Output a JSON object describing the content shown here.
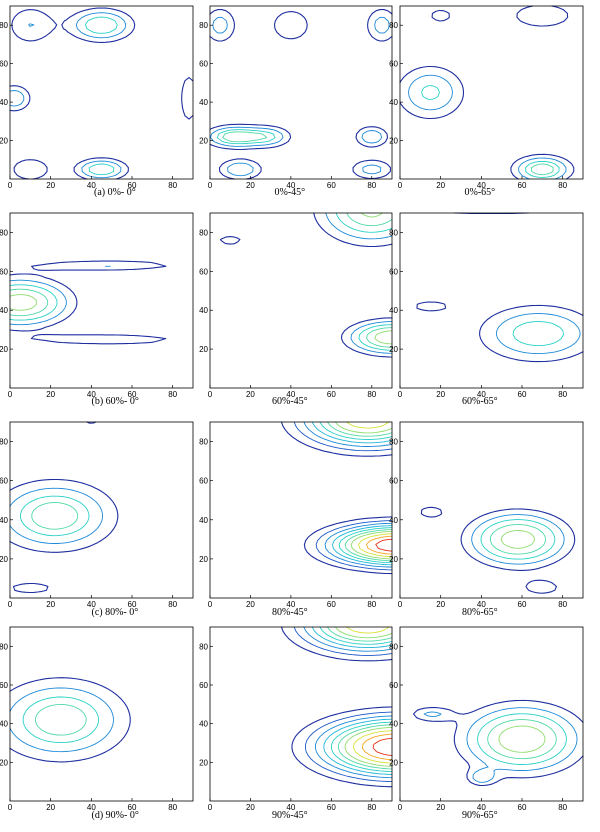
{
  "figure": {
    "panels": [
      {
        "caption": "(a) 0%- 0°"
      },
      {
        "caption": "0%-45°"
      },
      {
        "caption": "0%-65°"
      },
      {
        "caption": "(b) 60%- 0°"
      },
      {
        "caption": "60%-45°"
      },
      {
        "caption": "60%-65°"
      },
      {
        "caption": "(c) 80%- 0°"
      },
      {
        "caption": "80%-45°"
      },
      {
        "caption": "80%-65°"
      },
      {
        "caption": "(d) 90%- 0°"
      },
      {
        "caption": "90%-45°"
      },
      {
        "caption": "90%-65°"
      }
    ]
  },
  "colors": {
    "level_palette": [
      "#1f2fa0",
      "#1d58c8",
      "#1e8ad8",
      "#21b6d8",
      "#2ad1c8",
      "#52d9a6",
      "#8fdc6e",
      "#d6e23c",
      "#f5a623",
      "#e8321c"
    ]
  },
  "chart_data": [
    {
      "type": "contour",
      "caption": "(a) 0%- 0°",
      "xlim": [
        0,
        90
      ],
      "ylim": [
        90,
        0
      ],
      "xticks": [
        0,
        20,
        40,
        60,
        80
      ],
      "yticks": [
        20,
        40,
        60,
        80
      ],
      "show_yticks": true,
      "sources": [
        {
          "x": 45,
          "y": 5,
          "sx": 9,
          "sy": 4,
          "a": 0.9
        },
        {
          "x": 45,
          "y": 80,
          "sx": 11,
          "sy": 6,
          "a": 0.9
        },
        {
          "x": 2,
          "y": 42,
          "sx": 6,
          "sy": 5,
          "a": 0.7
        },
        {
          "x": 88,
          "y": 42,
          "sx": 4,
          "sy": 12,
          "a": 0.45
        },
        {
          "x": 10,
          "y": 5,
          "sx": 8,
          "sy": 5,
          "a": 0.5
        },
        {
          "x": 10,
          "y": 80,
          "sx": 9,
          "sy": 8,
          "a": 0.5
        }
      ],
      "levels": [
        0.3,
        0.5,
        0.7
      ]
    },
    {
      "type": "contour",
      "caption": "0%-45°",
      "xlim": [
        0,
        90
      ],
      "ylim": [
        90,
        0
      ],
      "xticks": [
        0,
        20,
        40,
        60,
        80
      ],
      "yticks": [
        20,
        40,
        60,
        80
      ],
      "show_yticks": true,
      "sources": [
        {
          "x": 12,
          "y": 22,
          "sx": 10,
          "sy": 4,
          "a": 1.0
        },
        {
          "x": 30,
          "y": 22,
          "sx": 8,
          "sy": 4,
          "a": 0.6
        },
        {
          "x": 80,
          "y": 22,
          "sx": 6,
          "sy": 4,
          "a": 0.7
        },
        {
          "x": 15,
          "y": 5,
          "sx": 8,
          "sy": 4,
          "a": 0.7
        },
        {
          "x": 80,
          "y": 5,
          "sx": 8,
          "sy": 4,
          "a": 0.6
        },
        {
          "x": 40,
          "y": 80,
          "sx": 8,
          "sy": 7,
          "a": 0.5
        },
        {
          "x": 85,
          "y": 80,
          "sx": 6,
          "sy": 7,
          "a": 0.6
        },
        {
          "x": 5,
          "y": 80,
          "sx": 6,
          "sy": 7,
          "a": 0.6
        }
      ],
      "levels": [
        0.3,
        0.5,
        0.7,
        0.85
      ]
    },
    {
      "type": "contour",
      "caption": "0%-65°",
      "xlim": [
        0,
        90
      ],
      "ylim": [
        90,
        0
      ],
      "xticks": [
        0,
        20,
        40,
        60,
        80
      ],
      "yticks": [
        20,
        40,
        60,
        80
      ],
      "show_yticks": true,
      "sources": [
        {
          "x": 70,
          "y": 5,
          "sx": 10,
          "sy": 5,
          "a": 1.0
        },
        {
          "x": 15,
          "y": 45,
          "sx": 12,
          "sy": 10,
          "a": 0.75
        },
        {
          "x": 70,
          "y": 85,
          "sx": 14,
          "sy": 6,
          "a": 0.45
        },
        {
          "x": 20,
          "y": 85,
          "sx": 8,
          "sy": 5,
          "a": 0.35
        }
      ],
      "levels": [
        0.3,
        0.5,
        0.7,
        0.85
      ]
    },
    {
      "type": "contour",
      "caption": "(b) 60%- 0°",
      "xlim": [
        0,
        90
      ],
      "ylim": [
        90,
        0
      ],
      "xticks": [
        0,
        20,
        40,
        60,
        80
      ],
      "yticks": [
        20,
        40,
        60,
        80
      ],
      "show_yticks": true,
      "sources": [
        {
          "x": 5,
          "y": 44,
          "sx": 18,
          "sy": 9,
          "a": 1.0
        },
        {
          "x": 50,
          "y": 25,
          "sx": 30,
          "sy": 2.5,
          "a": 0.45
        },
        {
          "x": 50,
          "y": 63,
          "sx": 30,
          "sy": 2.5,
          "a": 0.45
        }
      ],
      "levels": [
        0.3,
        0.45,
        0.6,
        0.75,
        0.9
      ]
    },
    {
      "type": "contour",
      "caption": "60%-45°",
      "xlim": [
        0,
        90
      ],
      "ylim": [
        90,
        0
      ],
      "xticks": [
        0,
        20,
        40,
        60,
        80
      ],
      "yticks": [
        20,
        40,
        60,
        80
      ],
      "show_yticks": true,
      "sources": [
        {
          "x": 90,
          "y": 26,
          "sx": 15,
          "sy": 6,
          "a": 1.0
        },
        {
          "x": 80,
          "y": 92,
          "sx": 18,
          "sy": 12,
          "a": 0.9
        },
        {
          "x": 10,
          "y": 76,
          "sx": 5,
          "sy": 2,
          "a": 0.4
        }
      ],
      "levels": [
        0.25,
        0.4,
        0.55,
        0.7,
        0.85
      ]
    },
    {
      "type": "contour",
      "caption": "60%-65°",
      "xlim": [
        0,
        90
      ],
      "ylim": [
        90,
        0
      ],
      "xticks": [
        0,
        20,
        40,
        60,
        80
      ],
      "yticks": [
        20,
        40,
        60,
        80
      ],
      "show_yticks": true,
      "sources": [
        {
          "x": 68,
          "y": 28,
          "sx": 20,
          "sy": 10,
          "a": 0.85
        },
        {
          "x": 15,
          "y": 42,
          "sx": 8,
          "sy": 2.5,
          "a": 0.45
        },
        {
          "x": 45,
          "y": 92,
          "sx": 50,
          "sy": 3,
          "a": 0.4
        }
      ],
      "levels": [
        0.3,
        0.5,
        0.7
      ]
    },
    {
      "type": "contour",
      "caption": "(c) 80%- 0°",
      "xlim": [
        0,
        90
      ],
      "ylim": [
        90,
        0
      ],
      "xticks": [
        0,
        20,
        40,
        60,
        80
      ],
      "yticks": [
        20,
        40,
        60,
        80
      ],
      "show_yticks": true,
      "sources": [
        {
          "x": 22,
          "y": 42,
          "sx": 20,
          "sy": 12,
          "a": 1.0
        },
        {
          "x": 10,
          "y": 5,
          "sx": 15,
          "sy": 4,
          "a": 0.35
        },
        {
          "x": 40,
          "y": 92,
          "sx": 6,
          "sy": 5,
          "a": 0.35
        }
      ],
      "levels": [
        0.3,
        0.5,
        0.7,
        0.85
      ]
    },
    {
      "type": "contour",
      "caption": "80%-45°",
      "xlim": [
        0,
        90
      ],
      "ylim": [
        90,
        0
      ],
      "xticks": [
        0,
        20,
        40,
        60,
        80
      ],
      "yticks": [
        20,
        40,
        60,
        80
      ],
      "show_yticks": true,
      "sources": [
        {
          "x": 92,
          "y": 27,
          "sx": 22,
          "sy": 7,
          "a": 1.0
        },
        {
          "x": 78,
          "y": 92,
          "sx": 22,
          "sy": 10,
          "a": 0.8
        }
      ],
      "levels": [
        0.12,
        0.2,
        0.28,
        0.36,
        0.44,
        0.52,
        0.6,
        0.7,
        0.8,
        0.9
      ]
    },
    {
      "type": "contour",
      "caption": "80%-65°",
      "xlim": [
        0,
        90
      ],
      "ylim": [
        90,
        0
      ],
      "xticks": [
        0,
        20,
        40,
        60,
        80
      ],
      "yticks": [
        20,
        40,
        60,
        80
      ],
      "show_yticks": true,
      "sources": [
        {
          "x": 58,
          "y": 30,
          "sx": 18,
          "sy": 10,
          "a": 1.0
        },
        {
          "x": 15,
          "y": 44,
          "sx": 6,
          "sy": 3,
          "a": 0.4
        },
        {
          "x": 70,
          "y": 5,
          "sx": 10,
          "sy": 4,
          "a": 0.35
        }
      ],
      "levels": [
        0.3,
        0.45,
        0.6,
        0.75,
        0.9
      ]
    },
    {
      "type": "contour",
      "caption": "(d) 90%- 0°",
      "xlim": [
        0,
        90
      ],
      "ylim": [
        90,
        0
      ],
      "xticks": [
        0,
        20,
        40,
        60,
        80
      ],
      "yticks": [
        20,
        40,
        60,
        80
      ],
      "show_yticks": true,
      "sources": [
        {
          "x": 25,
          "y": 42,
          "sx": 22,
          "sy": 14,
          "a": 1.0
        }
      ],
      "levels": [
        0.3,
        0.5,
        0.7,
        0.85
      ]
    },
    {
      "type": "contour",
      "caption": "90%-45°",
      "xlim": [
        0,
        90
      ],
      "ylim": [
        90,
        0
      ],
      "xticks": [
        0,
        20,
        40,
        60,
        80
      ],
      "yticks": [
        20,
        40,
        60,
        80
      ],
      "show_yticks": true,
      "sources": [
        {
          "x": 92,
          "y": 28,
          "sx": 25,
          "sy": 10,
          "a": 1.0
        },
        {
          "x": 78,
          "y": 92,
          "sx": 22,
          "sy": 10,
          "a": 0.8
        }
      ],
      "levels": [
        0.12,
        0.2,
        0.28,
        0.36,
        0.44,
        0.52,
        0.6,
        0.7,
        0.8,
        0.9
      ]
    },
    {
      "type": "contour",
      "caption": "90%-65°",
      "xlim": [
        0,
        90
      ],
      "ylim": [
        90,
        0
      ],
      "xticks": [
        0,
        20,
        40,
        60,
        80
      ],
      "yticks": [
        20,
        40,
        60,
        80
      ],
      "show_yticks": true,
      "sources": [
        {
          "x": 60,
          "y": 32,
          "sx": 20,
          "sy": 12,
          "a": 1.0
        },
        {
          "x": 40,
          "y": 12,
          "sx": 5,
          "sy": 3,
          "a": 0.4
        },
        {
          "x": 15,
          "y": 45,
          "sx": 8,
          "sy": 3,
          "a": 0.4
        }
      ],
      "levels": [
        0.25,
        0.4,
        0.55,
        0.7,
        0.85
      ]
    }
  ]
}
